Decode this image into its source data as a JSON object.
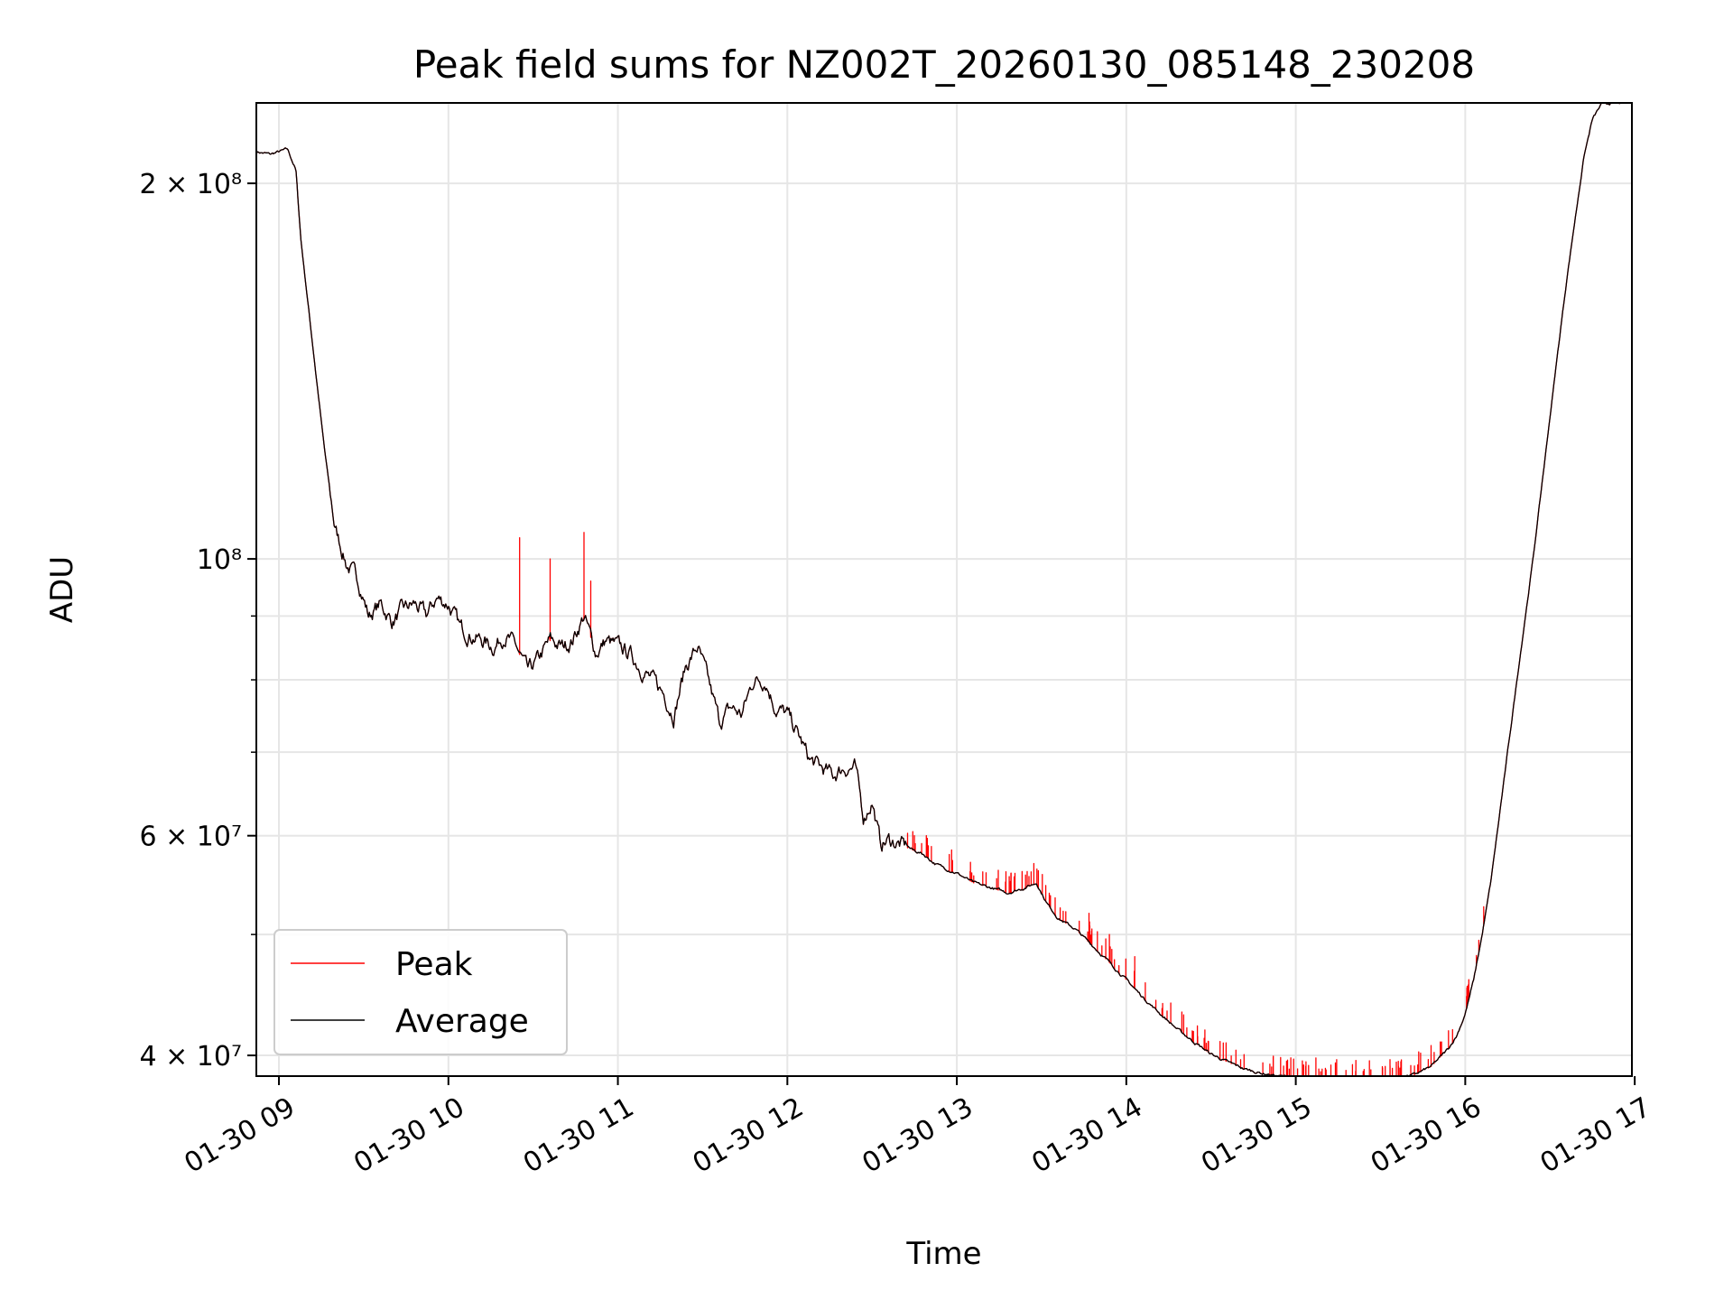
{
  "chart_data": {
    "type": "line",
    "title": "Peak field sums for NZ002T_20260130_085148_230208",
    "xlabel": "Time",
    "ylabel": "ADU",
    "y_scale": "log",
    "ylim": [
      38500000,
      232000000
    ],
    "xlim": [
      "01-30 08:52",
      "01-30 16:59"
    ],
    "grid": true,
    "legend_position": "lower-left",
    "x_tick_labels": [
      "01-30 09",
      "01-30 10",
      "01-30 11",
      "01-30 12",
      "01-30 13",
      "01-30 14",
      "01-30 15",
      "01-30 16",
      "01-30 17"
    ],
    "x_tick_hours": [
      9,
      10,
      11,
      12,
      13,
      14,
      15,
      16,
      17
    ],
    "y_major_ticks": [
      {
        "value": 40000000,
        "label": "4 × 10⁷"
      },
      {
        "value": 60000000,
        "label": "6 × 10⁷"
      },
      {
        "value": 100000000,
        "label": "10⁸"
      },
      {
        "value": 200000000,
        "label": "2 × 10⁸"
      }
    ],
    "y_minor_ticks": [
      50000000,
      70000000,
      80000000,
      90000000
    ],
    "series": [
      {
        "name": "Peak",
        "color": "#ff0000"
      },
      {
        "name": "Average",
        "color": "#000000"
      }
    ],
    "average": {
      "x_hours": [
        8.87,
        8.95,
        9.05,
        9.1,
        9.13,
        9.2,
        9.27,
        9.33,
        9.4,
        9.47,
        9.5,
        9.53,
        9.6,
        9.67,
        9.73,
        9.8,
        9.87,
        9.93,
        10.0,
        10.07,
        10.13,
        10.2,
        10.27,
        10.33,
        10.4,
        10.47,
        10.53,
        10.6,
        10.67,
        10.73,
        10.8,
        10.87,
        10.93,
        11.0,
        11.07,
        11.13,
        11.2,
        11.27,
        11.33,
        11.4,
        11.47,
        11.53,
        11.6,
        11.67,
        11.73,
        11.8,
        11.87,
        11.93,
        12.0,
        12.07,
        12.13,
        12.2,
        12.27,
        12.33,
        12.4,
        12.45,
        12.5,
        12.55,
        12.6,
        12.67,
        12.73,
        12.8,
        12.87,
        12.93,
        13.0,
        13.1,
        13.2,
        13.3,
        13.4,
        13.47,
        13.53,
        13.6,
        13.7,
        13.8,
        13.9,
        14.0,
        14.1,
        14.2,
        14.3,
        14.4,
        14.5,
        14.6,
        14.7,
        14.8,
        14.9,
        15.0,
        15.1,
        15.2,
        15.3,
        15.4,
        15.5,
        15.6,
        15.7,
        15.8,
        15.9,
        15.95,
        16.0,
        16.05,
        16.1,
        16.15,
        16.2,
        16.25,
        16.3,
        16.35,
        16.4,
        16.45,
        16.5,
        16.55,
        16.6,
        16.65,
        16.7,
        16.75,
        16.8,
        16.85,
        16.9,
        16.95
      ],
      "values": [
        212000000,
        211000000,
        213000000,
        205000000,
        180000000,
        148000000,
        122000000,
        106000000,
        99000000,
        96000000,
        93000000,
        90000000,
        92000000,
        89000000,
        91000000,
        92000000,
        90000000,
        93000000,
        92000000,
        88000000,
        87000000,
        86000000,
        85000000,
        87000000,
        85000000,
        81000000,
        83000000,
        86000000,
        85000000,
        86000000,
        90000000,
        84000000,
        86000000,
        85000000,
        84000000,
        82000000,
        80000000,
        78000000,
        75000000,
        82000000,
        85000000,
        80000000,
        74000000,
        76000000,
        75000000,
        80000000,
        80000000,
        76000000,
        75000000,
        72000000,
        69000000,
        68000000,
        67000000,
        68000000,
        68000000,
        62000000,
        64000000,
        59000000,
        59500000,
        59000000,
        58500000,
        58000000,
        57000000,
        56500000,
        56000000,
        55000000,
        54500000,
        54000000,
        54500000,
        55000000,
        53000000,
        51500000,
        50500000,
        49000000,
        47500000,
        46000000,
        44500000,
        43200000,
        42000000,
        41000000,
        40100000,
        39500000,
        39000000,
        38700000,
        38500000,
        38400000,
        38300000,
        38300000,
        38300000,
        38300000,
        38300000,
        38400000,
        38600000,
        39200000,
        40500000,
        41500000,
        43200000,
        46000000,
        50000000,
        55000000,
        62000000,
        70000000,
        79000000,
        89000000,
        100000000,
        114000000,
        130000000,
        148000000,
        168000000,
        188000000,
        210000000,
        225000000,
        231000000,
        232000000,
        232000000,
        232000000
      ],
      "stroke_width": 1.3
    },
    "peak": {
      "follows": "average",
      "spikes": [
        {
          "x_hours": 10.42,
          "value": 104000000
        },
        {
          "x_hours": 10.6,
          "value": 100000000
        },
        {
          "x_hours": 10.8,
          "value": 105000000
        },
        {
          "x_hours": 10.84,
          "value": 96000000
        },
        {
          "x_hours": 12.75,
          "value": 60000000
        },
        {
          "x_hours": 12.82,
          "value": 60000000
        },
        {
          "x_hours": 13.32,
          "value": 56000000
        },
        {
          "x_hours": 13.78,
          "value": 52000000
        },
        {
          "x_hours": 13.9,
          "value": 50000000
        },
        {
          "x_hours": 14.05,
          "value": 48000000
        }
      ],
      "spike_ranges": [
        {
          "from": 12.7,
          "to": 16.15,
          "count": 150,
          "max_rise": 0.04
        }
      ],
      "stroke_width": 1.3
    }
  }
}
